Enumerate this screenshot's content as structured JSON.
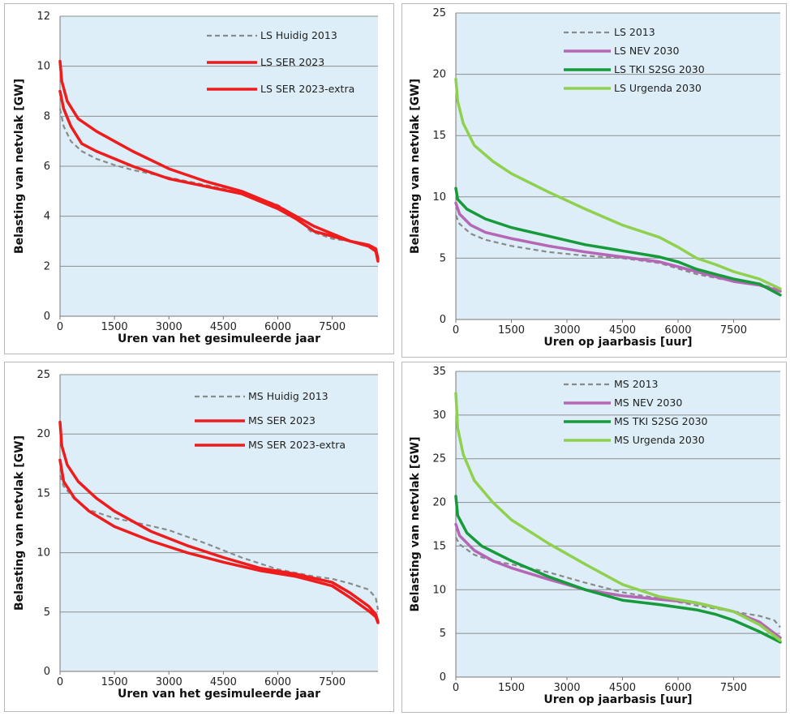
{
  "colors": {
    "plot_bg": "#ddeef8",
    "grid": "#8d8d8d",
    "dashed_grey": "#8a8a8a",
    "red": "#ee1c1c",
    "purple": "#b566b5",
    "dark_green": "#179a3a",
    "light_green": "#8fd14f"
  },
  "chart_data": [
    {
      "type": "line",
      "xlabel": "Uren van het gesimuleerde jaar",
      "ylabel": "Belasting van netvlak [GW]",
      "xticks": [
        "0",
        "1500",
        "3000",
        "4500",
        "6000",
        "7500"
      ],
      "yticks": [
        "0",
        "2",
        "4",
        "6",
        "8",
        "10",
        "12"
      ],
      "xlim": [
        0,
        8760
      ],
      "ylim": [
        0,
        12
      ],
      "grid": "horizontal",
      "legend_position": "top-right",
      "series": [
        {
          "name": "LS Huidig 2013",
          "style": "dashed",
          "color": "#8a8a8a",
          "x": [
            0,
            100,
            300,
            600,
            1000,
            1500,
            2000,
            3000,
            4000,
            5000,
            6000,
            6500,
            6900,
            7500,
            8000,
            8500,
            8700,
            8760
          ],
          "y": [
            8.3,
            7.6,
            7.0,
            6.6,
            6.3,
            6.05,
            5.85,
            5.55,
            5.25,
            4.95,
            4.45,
            4.0,
            3.4,
            3.1,
            3.0,
            2.8,
            2.6,
            2.3
          ]
        },
        {
          "name": "LS SER 2023",
          "style": "solid",
          "color": "#ee1c1c",
          "x": [
            0,
            100,
            300,
            600,
            1000,
            1500,
            2000,
            3000,
            4000,
            5000,
            6000,
            6500,
            7000,
            7500,
            8000,
            8500,
            8700,
            8760
          ],
          "y": [
            9.0,
            8.3,
            7.6,
            6.9,
            6.6,
            6.3,
            6.0,
            5.5,
            5.2,
            4.9,
            4.3,
            3.9,
            3.4,
            3.2,
            3.0,
            2.8,
            2.6,
            2.2
          ]
        },
        {
          "name": "LS SER  2023-extra",
          "style": "solid",
          "color": "#ee1c1c",
          "x": [
            0,
            50,
            200,
            500,
            1000,
            1500,
            2000,
            3000,
            4000,
            5000,
            6000,
            6500,
            7000,
            7500,
            8000,
            8500,
            8700,
            8760
          ],
          "y": [
            10.2,
            9.4,
            8.6,
            7.9,
            7.4,
            7.0,
            6.6,
            5.9,
            5.4,
            5.0,
            4.4,
            4.0,
            3.6,
            3.3,
            3.0,
            2.85,
            2.7,
            2.3
          ]
        }
      ]
    },
    {
      "type": "line",
      "xlabel": "Uren op jaarbasis [uur]",
      "ylabel": "Belasting van netvlak [GW]",
      "xticks": [
        "0",
        "1500",
        "3000",
        "4500",
        "6000",
        "7500"
      ],
      "yticks": [
        "0",
        "5",
        "10",
        "15",
        "20",
        "25"
      ],
      "xlim": [
        0,
        8760
      ],
      "ylim": [
        0,
        25
      ],
      "grid": "horizontal",
      "legend_position": "top-right",
      "series": [
        {
          "name": "LS 2013",
          "style": "dashed",
          "color": "#8a8a8a",
          "x": [
            0,
            100,
            400,
            800,
            1500,
            2500,
            3500,
            4500,
            5500,
            6500,
            7500,
            8200,
            8760
          ],
          "y": [
            8.5,
            7.8,
            7.0,
            6.5,
            6.0,
            5.5,
            5.2,
            5.0,
            4.6,
            3.7,
            3.1,
            2.9,
            2.4
          ]
        },
        {
          "name": "LS NEV 2030",
          "style": "solid",
          "color": "#b566b5",
          "x": [
            0,
            100,
            400,
            800,
            1500,
            2500,
            3500,
            4500,
            5500,
            6500,
            7500,
            8200,
            8760
          ],
          "y": [
            9.5,
            8.6,
            7.7,
            7.1,
            6.6,
            6.0,
            5.5,
            5.1,
            4.7,
            3.9,
            3.1,
            2.8,
            2.3
          ]
        },
        {
          "name": "LS TKI S2SG 2030",
          "style": "solid",
          "color": "#179a3a",
          "x": [
            0,
            50,
            300,
            800,
            1500,
            2500,
            3500,
            4500,
            5500,
            6000,
            6500,
            7500,
            8200,
            8760
          ],
          "y": [
            10.7,
            9.8,
            9.0,
            8.2,
            7.5,
            6.8,
            6.1,
            5.6,
            5.1,
            4.7,
            4.1,
            3.3,
            2.9,
            2.0
          ]
        },
        {
          "name": "LS Urgenda 2030",
          "style": "solid",
          "color": "#8fd14f",
          "x": [
            0,
            50,
            200,
            500,
            1000,
            1500,
            2500,
            3500,
            4500,
            5500,
            6000,
            6500,
            7000,
            7500,
            8200,
            8760
          ],
          "y": [
            19.6,
            17.8,
            16.0,
            14.2,
            12.9,
            11.9,
            10.4,
            9.0,
            7.7,
            6.7,
            5.9,
            5.0,
            4.5,
            3.9,
            3.3,
            2.5
          ]
        }
      ]
    },
    {
      "type": "line",
      "xlabel": "Uren van het gesimuleerde jaar",
      "ylabel": "Belasting van netvlak [GW]",
      "xticks": [
        "0",
        "1500",
        "3000",
        "4500",
        "6000",
        "7500"
      ],
      "yticks": [
        "0",
        "5",
        "10",
        "15",
        "20",
        "25"
      ],
      "xlim": [
        0,
        8760
      ],
      "ylim": [
        0,
        25
      ],
      "grid": "horizontal",
      "legend_position": "top-right",
      "series": [
        {
          "name": "MS Huidig 2013",
          "style": "dashed",
          "color": "#8a8a8a",
          "x": [
            0,
            100,
            400,
            800,
            1500,
            2000,
            3000,
            4000,
            5000,
            6000,
            7000,
            7500,
            8000,
            8500,
            8700,
            8760
          ],
          "y": [
            16.5,
            15.6,
            14.5,
            13.6,
            12.9,
            12.6,
            11.9,
            10.8,
            9.6,
            8.6,
            8.0,
            7.8,
            7.4,
            6.9,
            6.2,
            5.2
          ]
        },
        {
          "name": "MS SER 2023",
          "style": "solid",
          "color": "#ee1c1c",
          "x": [
            0,
            100,
            400,
            800,
            1500,
            2500,
            3500,
            4500,
            5500,
            6500,
            7500,
            8000,
            8500,
            8700,
            8760
          ],
          "y": [
            17.8,
            16.0,
            14.6,
            13.5,
            12.2,
            11.0,
            10.0,
            9.2,
            8.5,
            8.0,
            7.2,
            6.2,
            5.1,
            4.6,
            4.1
          ]
        },
        {
          "name": "MS SER  2023-extra",
          "style": "solid",
          "color": "#ee1c1c",
          "x": [
            0,
            50,
            200,
            500,
            1000,
            1500,
            2500,
            3500,
            4500,
            5500,
            6500,
            7500,
            8000,
            8500,
            8700,
            8760
          ],
          "y": [
            21.0,
            19.0,
            17.4,
            16.0,
            14.6,
            13.5,
            11.8,
            10.6,
            9.6,
            8.7,
            8.2,
            7.5,
            6.6,
            5.5,
            4.8,
            4.2
          ]
        }
      ]
    },
    {
      "type": "line",
      "xlabel": "Uren op jaarbasis [uur]",
      "ylabel": "Belasting van netvlak [GW]",
      "xticks": [
        "0",
        "1500",
        "3000",
        "4500",
        "6000",
        "7500"
      ],
      "yticks": [
        "0",
        "5",
        "10",
        "15",
        "20",
        "25",
        "30",
        "35"
      ],
      "xlim": [
        0,
        8760
      ],
      "ylim": [
        0,
        35
      ],
      "grid": "horizontal",
      "legend_position": "top-right",
      "series": [
        {
          "name": "MS 2013",
          "style": "dashed",
          "color": "#8a8a8a",
          "x": [
            0,
            100,
            500,
            1000,
            1500,
            2500,
            3500,
            4500,
            5500,
            6500,
            7500,
            8200,
            8600,
            8760
          ],
          "y": [
            16.0,
            15.2,
            14.0,
            13.3,
            12.9,
            12.0,
            10.8,
            9.7,
            9.0,
            8.2,
            7.5,
            7.0,
            6.5,
            5.7
          ]
        },
        {
          "name": "MS NEV 2030",
          "style": "solid",
          "color": "#b566b5",
          "x": [
            0,
            100,
            500,
            1000,
            1500,
            2500,
            3500,
            4500,
            5500,
            6500,
            7500,
            8200,
            8760
          ],
          "y": [
            17.5,
            16.2,
            14.5,
            13.3,
            12.5,
            11.2,
            10.0,
            9.3,
            8.9,
            8.5,
            7.5,
            6.3,
            4.5
          ]
        },
        {
          "name": "MS TKI S2SG 2030",
          "style": "solid",
          "color": "#179a3a",
          "x": [
            0,
            50,
            300,
            700,
            1500,
            2500,
            3500,
            4500,
            5500,
            6500,
            7000,
            7500,
            8200,
            8760
          ],
          "y": [
            20.7,
            18.5,
            16.5,
            15.0,
            13.3,
            11.5,
            10.0,
            8.8,
            8.3,
            7.7,
            7.2,
            6.5,
            5.2,
            4.0
          ]
        },
        {
          "name": "MS Urgenda 2030",
          "style": "solid",
          "color": "#8fd14f",
          "x": [
            0,
            50,
            200,
            500,
            1000,
            1500,
            2500,
            3500,
            4500,
            5500,
            6500,
            7500,
            8200,
            8760
          ],
          "y": [
            32.5,
            28.5,
            25.5,
            22.5,
            20.0,
            18.0,
            15.3,
            12.9,
            10.6,
            9.2,
            8.5,
            7.5,
            6.0,
            4.2
          ]
        }
      ]
    }
  ]
}
